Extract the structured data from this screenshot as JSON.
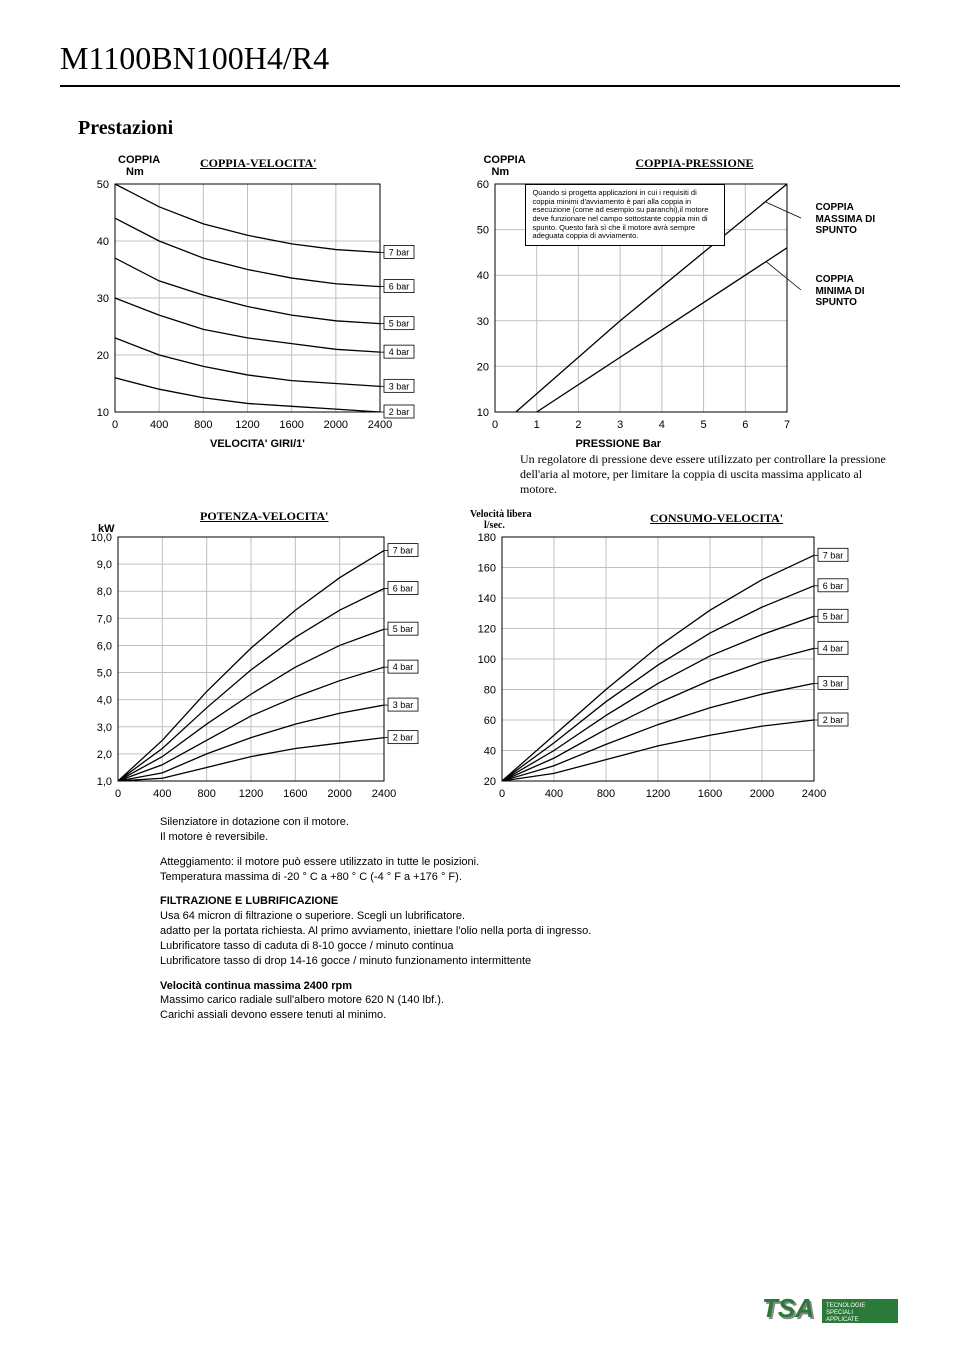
{
  "page": {
    "title": "M1100BN100H4/R4",
    "subtitle": "Prestazioni"
  },
  "chart1": {
    "type": "line",
    "title": "COPPIA-VELOCITA'",
    "ylabel_top": "COPPIA",
    "ylabel_bot": "Nm",
    "xlabel": "VELOCITA' GIRI/1'",
    "xlim": [
      0,
      2400
    ],
    "xticks": [
      0,
      400,
      800,
      1200,
      1600,
      2000,
      2400
    ],
    "ylim": [
      10,
      50
    ],
    "yticks": [
      10,
      20,
      30,
      40,
      50
    ],
    "grid_color": "#c0c0c0",
    "line_color": "#000000",
    "bar_labels": [
      "7 bar",
      "6 bar",
      "5 bar",
      "4 bar",
      "3 bar",
      "2 bar"
    ],
    "series": [
      {
        "label": "7 bar",
        "points": [
          [
            0,
            50
          ],
          [
            400,
            46
          ],
          [
            800,
            43
          ],
          [
            1200,
            41
          ],
          [
            1600,
            39.5
          ],
          [
            2000,
            38.5
          ],
          [
            2400,
            38
          ]
        ]
      },
      {
        "label": "6 bar",
        "points": [
          [
            0,
            44
          ],
          [
            400,
            40
          ],
          [
            800,
            37
          ],
          [
            1200,
            35
          ],
          [
            1600,
            33.5
          ],
          [
            2000,
            32.5
          ],
          [
            2400,
            32
          ]
        ]
      },
      {
        "label": "5 bar",
        "points": [
          [
            0,
            37
          ],
          [
            400,
            33
          ],
          [
            800,
            30.5
          ],
          [
            1200,
            28.5
          ],
          [
            1600,
            27
          ],
          [
            2000,
            26
          ],
          [
            2400,
            25.5
          ]
        ]
      },
      {
        "label": "4 bar",
        "points": [
          [
            0,
            30
          ],
          [
            400,
            27
          ],
          [
            800,
            24.5
          ],
          [
            1200,
            23
          ],
          [
            1600,
            22
          ],
          [
            2000,
            21
          ],
          [
            2400,
            20.5
          ]
        ]
      },
      {
        "label": "3 bar",
        "points": [
          [
            0,
            23
          ],
          [
            400,
            20
          ],
          [
            800,
            18
          ],
          [
            1200,
            16.5
          ],
          [
            1600,
            15.5
          ],
          [
            2000,
            15
          ],
          [
            2400,
            14.5
          ]
        ]
      },
      {
        "label": "2 bar",
        "points": [
          [
            0,
            16
          ],
          [
            400,
            14
          ],
          [
            800,
            12.5
          ],
          [
            1200,
            11.5
          ],
          [
            1600,
            11
          ],
          [
            2000,
            10.5
          ],
          [
            2400,
            10
          ]
        ]
      }
    ]
  },
  "chart2": {
    "type": "line",
    "title": "COPPIA-PRESSIONE",
    "ylabel_top": "COPPIA",
    "ylabel_bot": "Nm",
    "xlabel": "PRESSIONE Bar",
    "xlim": [
      0,
      7
    ],
    "xticks": [
      0,
      1,
      2,
      3,
      4,
      5,
      6,
      7
    ],
    "ylim": [
      10,
      60
    ],
    "yticks": [
      10,
      20,
      30,
      40,
      50,
      60
    ],
    "grid_color": "#c0c0c0",
    "line_color": "#000000",
    "note": "Quando si progetta applicazioni in cui i requisiti di coppia minimi d'avviamento è pari alla coppia in esecuzione (come ad esempio su paranchi),il motore deve funzionare nel campo sottostante coppia min di spunto. Questo farà sì che il motore avrà sempre adeguata coppia di avviamento.",
    "side_max": "COPPIA MASSIMA DI SPUNTO",
    "side_min": "COPPIA MINIMA DI SPUNTO",
    "series": [
      {
        "label": "max",
        "points": [
          [
            0.5,
            10
          ],
          [
            3,
            30
          ],
          [
            7,
            60
          ]
        ]
      },
      {
        "label": "min",
        "points": [
          [
            1,
            10
          ],
          [
            4,
            28
          ],
          [
            7,
            46
          ]
        ]
      }
    ]
  },
  "chart3": {
    "type": "line",
    "title": "POTENZA-VELOCITA'",
    "ylabel": "kW",
    "xlim": [
      0,
      2400
    ],
    "xticks": [
      0,
      400,
      800,
      1200,
      1600,
      2000,
      2400
    ],
    "ylim": [
      1.0,
      10.0
    ],
    "yticks": [
      "1,0",
      "2,0",
      "3,0",
      "4,0",
      "5,0",
      "6,0",
      "7,0",
      "8,0",
      "9,0",
      "10,0"
    ],
    "grid_color": "#c0c0c0",
    "line_color": "#000000",
    "bar_labels": [
      "7 bar",
      "6 bar",
      "5 bar",
      "4 bar",
      "3 bar",
      "2 bar"
    ],
    "series": [
      {
        "label": "7 bar",
        "points": [
          [
            0,
            1.0
          ],
          [
            400,
            2.5
          ],
          [
            800,
            4.3
          ],
          [
            1200,
            5.9
          ],
          [
            1600,
            7.3
          ],
          [
            2000,
            8.5
          ],
          [
            2400,
            9.5
          ]
        ]
      },
      {
        "label": "6 bar",
        "points": [
          [
            0,
            1.0
          ],
          [
            400,
            2.2
          ],
          [
            800,
            3.7
          ],
          [
            1200,
            5.1
          ],
          [
            1600,
            6.3
          ],
          [
            2000,
            7.3
          ],
          [
            2400,
            8.1
          ]
        ]
      },
      {
        "label": "5 bar",
        "points": [
          [
            0,
            1.0
          ],
          [
            400,
            1.9
          ],
          [
            800,
            3.1
          ],
          [
            1200,
            4.2
          ],
          [
            1600,
            5.2
          ],
          [
            2000,
            6.0
          ],
          [
            2400,
            6.6
          ]
        ]
      },
      {
        "label": "4 bar",
        "points": [
          [
            0,
            1.0
          ],
          [
            400,
            1.6
          ],
          [
            800,
            2.5
          ],
          [
            1200,
            3.4
          ],
          [
            1600,
            4.1
          ],
          [
            2000,
            4.7
          ],
          [
            2400,
            5.2
          ]
        ]
      },
      {
        "label": "3 bar",
        "points": [
          [
            0,
            1.0
          ],
          [
            400,
            1.3
          ],
          [
            800,
            2.0
          ],
          [
            1200,
            2.6
          ],
          [
            1600,
            3.1
          ],
          [
            2000,
            3.5
          ],
          [
            2400,
            3.8
          ]
        ]
      },
      {
        "label": "2 bar",
        "points": [
          [
            0,
            1.0
          ],
          [
            400,
            1.1
          ],
          [
            800,
            1.5
          ],
          [
            1200,
            1.9
          ],
          [
            1600,
            2.2
          ],
          [
            2000,
            2.4
          ],
          [
            2400,
            2.6
          ]
        ]
      }
    ]
  },
  "chart4": {
    "type": "line",
    "title": "CONSUMO-VELOCITA'",
    "ylabel_top": "Velocità libera",
    "ylabel_bot": "l/sec.",
    "xlim": [
      0,
      2400
    ],
    "xticks": [
      0,
      400,
      800,
      1200,
      1600,
      2000,
      2400
    ],
    "ylim": [
      20,
      180
    ],
    "yticks": [
      20,
      40,
      60,
      80,
      100,
      120,
      140,
      160,
      180
    ],
    "grid_color": "#c0c0c0",
    "line_color": "#000000",
    "bar_labels": [
      "7 bar",
      "6 bar",
      "5 bar",
      "4 bar",
      "3 bar",
      "2 bar"
    ],
    "series": [
      {
        "label": "7 bar",
        "points": [
          [
            0,
            20
          ],
          [
            400,
            50
          ],
          [
            800,
            80
          ],
          [
            1200,
            108
          ],
          [
            1600,
            132
          ],
          [
            2000,
            152
          ],
          [
            2400,
            168
          ]
        ]
      },
      {
        "label": "6 bar",
        "points": [
          [
            0,
            20
          ],
          [
            400,
            45
          ],
          [
            800,
            72
          ],
          [
            1200,
            96
          ],
          [
            1600,
            117
          ],
          [
            2000,
            134
          ],
          [
            2400,
            148
          ]
        ]
      },
      {
        "label": "5 bar",
        "points": [
          [
            0,
            20
          ],
          [
            400,
            40
          ],
          [
            800,
            63
          ],
          [
            1200,
            84
          ],
          [
            1600,
            102
          ],
          [
            2000,
            116
          ],
          [
            2400,
            128
          ]
        ]
      },
      {
        "label": "4 bar",
        "points": [
          [
            0,
            20
          ],
          [
            400,
            35
          ],
          [
            800,
            54
          ],
          [
            1200,
            71
          ],
          [
            1600,
            86
          ],
          [
            2000,
            98
          ],
          [
            2400,
            107
          ]
        ]
      },
      {
        "label": "3 bar",
        "points": [
          [
            0,
            20
          ],
          [
            400,
            30
          ],
          [
            800,
            44
          ],
          [
            1200,
            57
          ],
          [
            1600,
            68
          ],
          [
            2000,
            77
          ],
          [
            2400,
            84
          ]
        ]
      },
      {
        "label": "2 bar",
        "points": [
          [
            0,
            20
          ],
          [
            400,
            25
          ],
          [
            800,
            34
          ],
          [
            1200,
            43
          ],
          [
            1600,
            50
          ],
          [
            2000,
            56
          ],
          [
            2400,
            60
          ]
        ]
      }
    ]
  },
  "mid_text": "Un regolatore di pressione deve essere utilizzato per controllare la pressione dell'aria al motore, per limitare la coppia di uscita massima applicato al motore.",
  "bottom": {
    "p1": "Silenziatore in dotazione con il motore.\nIl motore è reversibile.",
    "p2": "Atteggiamento: il motore può essere utilizzato in tutte le posizioni.\nTemperatura massima di -20 ° C a +80 ° C (-4 ° F a +176 ° F).",
    "p3_title": "FILTRAZIONE E LUBRIFICAZIONE",
    "p3": "Usa 64 micron di filtrazione o superiore. Scegli un lubrificatore.\nadatto per la portata richiesta. Al primo avviamento, iniettare l'olio nella porta di ingresso.\nLubrificatore tasso di caduta di 8-10 gocce / minuto continua\nLubrificatore tasso di drop 14-16 gocce / minuto funzionamento intermittente",
    "p4_title": "Velocità continua massima 2400 rpm",
    "p4": "Massimo carico radiale sull'albero motore 620 N (140 lbf.).\nCarichi assiali devono essere tenuti al minimo."
  },
  "logo": {
    "text": "TSA",
    "sub": "TECNOLOGIE SPECIALI APPLICATE",
    "color": "#2a7a3a"
  }
}
